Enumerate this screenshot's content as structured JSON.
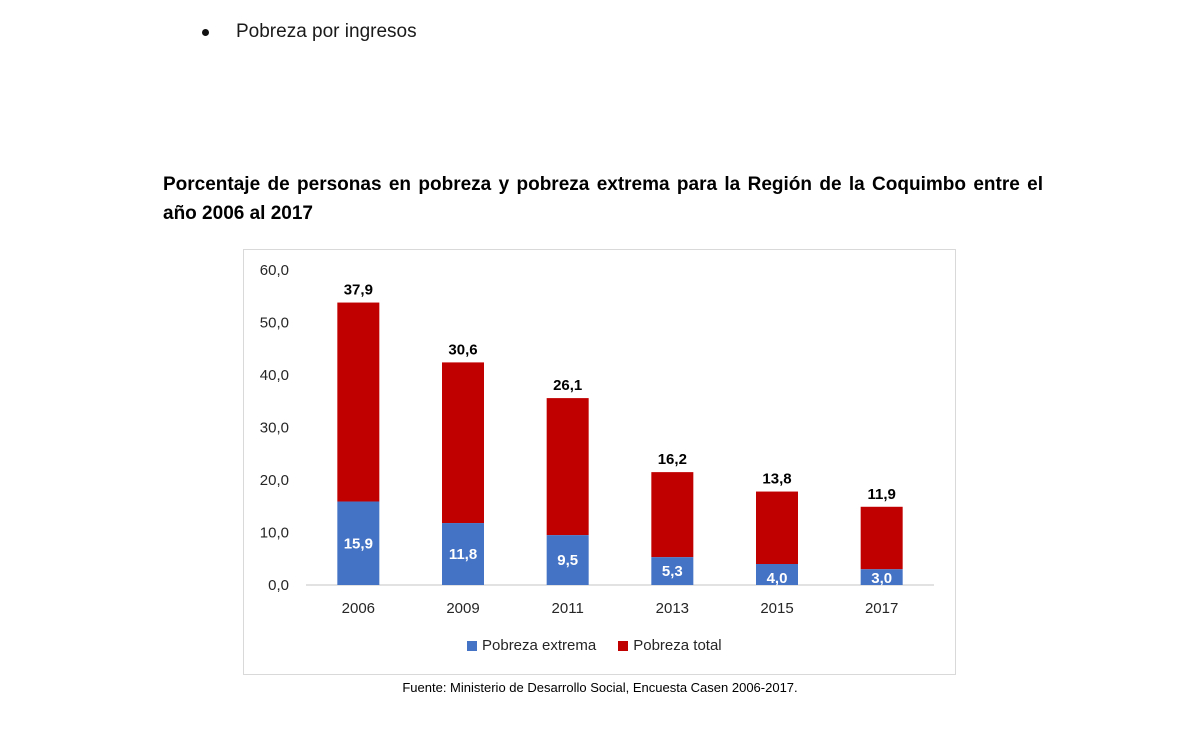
{
  "bullet": {
    "text": "Pobreza por ingresos"
  },
  "title": "Porcentaje de personas en pobreza y pobreza extrema para la Región de la Coquimbo entre el año 2006 al 2017",
  "source": "Fuente: Ministerio de Desarrollo Social, Encuesta Casen 2006-2017.",
  "colors": {
    "extrema": "#4472c4",
    "total": "#c00000",
    "grid": "#d9d9d9",
    "text": "#262626"
  },
  "chart_data": {
    "type": "bar",
    "stacked": true,
    "categories": [
      "2006",
      "2009",
      "2011",
      "2013",
      "2015",
      "2017"
    ],
    "series": [
      {
        "name": "Pobreza extrema",
        "values": [
          15.9,
          11.8,
          9.5,
          5.3,
          4.0,
          3.0
        ],
        "labels": [
          "15,9",
          "11,8",
          "9,5",
          "5,3",
          "4,0",
          "3,0"
        ]
      },
      {
        "name": "Pobreza total",
        "values": [
          37.9,
          30.6,
          26.1,
          16.2,
          13.8,
          11.9
        ],
        "labels": [
          "37,9",
          "30,6",
          "26,1",
          "16,2",
          "13,8",
          "11,9"
        ]
      }
    ],
    "yticks": [
      "0,0",
      "10,0",
      "20,0",
      "30,0",
      "40,0",
      "50,0",
      "60,0"
    ],
    "ylim": [
      0,
      60
    ],
    "grid": false,
    "legend": "bottom"
  }
}
